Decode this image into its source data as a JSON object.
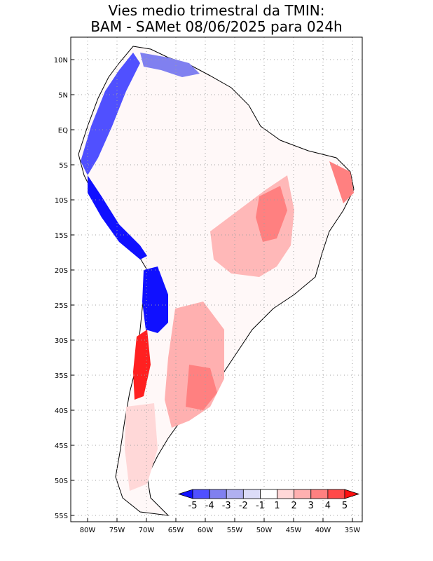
{
  "title_line1": "Vies medio trimestral da TMIN:",
  "title_line2": "BAM - SAMet 08/06/2025  para 024h",
  "map": {
    "region": "South America",
    "lat_ticks": [
      "10N",
      "5N",
      "EQ",
      "5S",
      "10S",
      "15S",
      "20S",
      "25S",
      "30S",
      "35S",
      "40S",
      "45S",
      "50S",
      "55S"
    ],
    "lon_ticks": [
      "80W",
      "75W",
      "70W",
      "65W",
      "60W",
      "55W",
      "50W",
      "45W",
      "40W",
      "35W"
    ],
    "grid": "dotted"
  },
  "colorbar": {
    "labels": [
      "-5",
      "-4",
      "-3",
      "-2",
      "-1",
      "1",
      "2",
      "3",
      "4",
      "5"
    ],
    "colors": [
      "#1010ff",
      "#5050ff",
      "#8080f0",
      "#b0b0f0",
      "#dcdcf8",
      "#ffffff",
      "#ffd8d8",
      "#ffb0b0",
      "#ff8080",
      "#ff4848",
      "#ff1010"
    ]
  }
}
